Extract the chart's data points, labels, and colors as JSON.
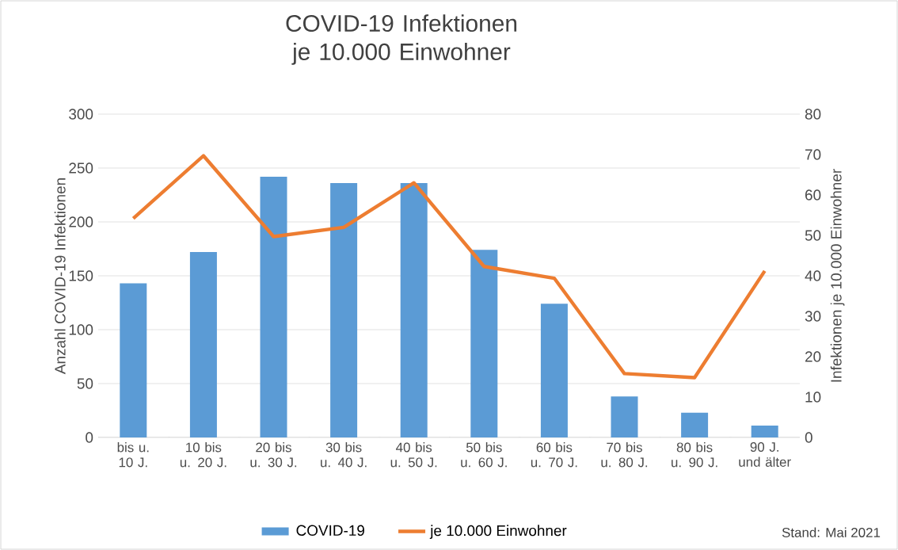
{
  "chart_data": {
    "type": "bar",
    "title": "COVID-19 Infektionen je 10.000 Einwohner",
    "categories": [
      "bis u. 10 J.",
      "10 bis u. 20 J.",
      "20 bis u. 30 J.",
      "30 bis u. 40 J.",
      "40 bis u. 50 J.",
      "50 bis u. 60 J.",
      "60 bis u. 70 J.",
      "70 bis u. 80 J.",
      "80 bis u. 90 J.",
      "90 J. und älter"
    ],
    "series": [
      {
        "name": "COVID-19",
        "color": "#5b9bd5",
        "values": [
          143,
          172,
          242,
          236,
          236,
          174,
          124,
          38,
          23,
          11
        ]
      },
      {
        "name": "je 10.000 Einwohner",
        "type": "line",
        "axis": "y2",
        "color": "#ed7d31",
        "values": [
          54.2,
          69.7,
          49.7,
          52,
          63,
          42.3,
          39.4,
          15.8,
          14.8,
          41.2
        ]
      }
    ],
    "ylabel": "Anzahl COVID-19 Infektionen",
    "y2label": "Infektionen je 10.000 Einwohner",
    "ylim": [
      0,
      300
    ],
    "yticks": [
      0,
      50,
      100,
      150,
      200,
      250,
      300
    ],
    "y2lim": [
      0,
      80
    ],
    "y2ticks": [
      0,
      10,
      20,
      30,
      40,
      50,
      60,
      70,
      80
    ],
    "grid": "y",
    "legend": "bottom",
    "marker": "none",
    "line_style": "solid",
    "annotations": [
      "Stand: Mai 2021"
    ]
  }
}
